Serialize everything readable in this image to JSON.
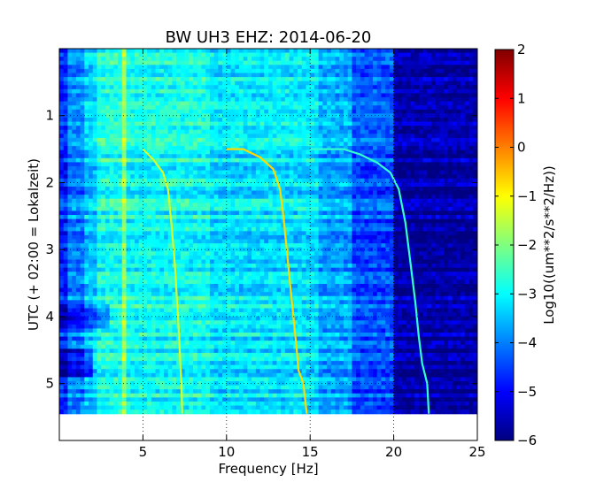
{
  "chart_data": {
    "type": "heatmap",
    "title": "BW UH3 EHZ: 2014-06-20",
    "xlabel": "Frequency [Hz]",
    "ylabel": "UTC (+ 02:00 = Lokalzeit)",
    "xlim": [
      0,
      25
    ],
    "ylim": [
      5.85,
      0
    ],
    "x_ticks": [
      5,
      10,
      15,
      20,
      25
    ],
    "y_ticks": [
      1,
      2,
      3,
      4,
      5
    ],
    "data_extent_y": [
      0,
      5.45
    ],
    "grid": true,
    "colormap": "jet",
    "colorbar": {
      "label": "Log10((um**2/s**2/Hz))",
      "min": -6,
      "max": 2,
      "ticks": [
        2,
        1,
        0,
        -1,
        -2,
        -3,
        -4,
        -5,
        -6
      ]
    },
    "bands": [
      {
        "x0": 0,
        "x1": 0.5,
        "value": -4.7
      },
      {
        "x0": 0.5,
        "x1": 1.5,
        "value": -4.0
      },
      {
        "x0": 1.5,
        "x1": 2.2,
        "value": -3.4
      },
      {
        "x0": 2.2,
        "x1": 3.8,
        "value": -2.8
      },
      {
        "x0": 3.8,
        "x1": 4.0,
        "value": -1.8
      },
      {
        "x0": 4.0,
        "x1": 9.0,
        "value": -2.9
      },
      {
        "x0": 9.0,
        "x1": 15.5,
        "value": -3.2
      },
      {
        "x0": 15.5,
        "x1": 17.5,
        "value": -3.7
      },
      {
        "x0": 17.5,
        "x1": 20.0,
        "value": -4.4
      },
      {
        "x0": 20.0,
        "x1": 25.0,
        "value": -5.7
      }
    ],
    "tracks": [
      {
        "value": -1.3,
        "points": [
          [
            5.0,
            1.5
          ],
          [
            5.6,
            1.65
          ],
          [
            6.2,
            1.85
          ],
          [
            6.5,
            2.1
          ],
          [
            6.7,
            2.6
          ],
          [
            6.9,
            3.2
          ],
          [
            7.1,
            4.0
          ],
          [
            7.2,
            4.5
          ],
          [
            7.3,
            5.0
          ],
          [
            7.35,
            5.45
          ]
        ]
      },
      {
        "value": -0.7,
        "points": [
          [
            10.0,
            1.5
          ],
          [
            11.0,
            1.5
          ],
          [
            12.0,
            1.62
          ],
          [
            12.8,
            1.8
          ],
          [
            13.2,
            2.1
          ],
          [
            13.4,
            2.5
          ],
          [
            13.6,
            3.0
          ],
          [
            13.8,
            3.5
          ],
          [
            14.0,
            4.0
          ],
          [
            14.2,
            4.5
          ],
          [
            14.3,
            4.8
          ],
          [
            14.6,
            5.0
          ],
          [
            14.8,
            5.45
          ]
        ]
      },
      {
        "value": -2.6,
        "points": [
          [
            15.0,
            1.5
          ],
          [
            17.0,
            1.5
          ],
          [
            18.0,
            1.58
          ],
          [
            19.0,
            1.7
          ],
          [
            19.8,
            1.85
          ],
          [
            20.3,
            2.1
          ],
          [
            20.7,
            2.6
          ],
          [
            21.0,
            3.2
          ],
          [
            21.3,
            3.8
          ],
          [
            21.5,
            4.3
          ],
          [
            21.7,
            4.7
          ],
          [
            22.0,
            5.0
          ],
          [
            22.1,
            5.45
          ]
        ]
      }
    ]
  }
}
